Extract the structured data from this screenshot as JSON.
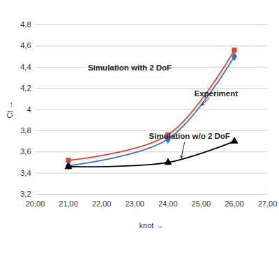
{
  "chart_data": {
    "type": "line",
    "x_label": "knot",
    "y_label": "Ct",
    "x": [
      21,
      24,
      26
    ],
    "xlim": [
      20,
      27
    ],
    "xticks": [
      {
        "value": 20,
        "label": "20,00"
      },
      {
        "value": 21,
        "label": "21,00"
      },
      {
        "value": 22,
        "label": "22,00"
      },
      {
        "value": 23,
        "label": "23,00"
      },
      {
        "value": 24,
        "label": "24,00"
      },
      {
        "value": 25,
        "label": "25,00"
      },
      {
        "value": 26,
        "label": "26,00"
      },
      {
        "value": 27,
        "label": "27,00"
      }
    ],
    "ylim": [
      3.2,
      4.8
    ],
    "yticks": [
      {
        "value": 3.2,
        "label": "3,2"
      },
      {
        "value": 3.4,
        "label": "3,4"
      },
      {
        "value": 3.6,
        "label": "3,6"
      },
      {
        "value": 3.8,
        "label": "3,8"
      },
      {
        "value": 4,
        "label": "4"
      },
      {
        "value": 4.2,
        "label": "4,2"
      },
      {
        "value": 4.4,
        "label": "4,4"
      },
      {
        "value": 4.6,
        "label": "4,6"
      },
      {
        "value": 4.8,
        "label": "4,8"
      }
    ],
    "grid": "y",
    "series": [
      {
        "name": "Simulation with 2 DoF",
        "color": "#d9443c",
        "marker": "square",
        "values": [
          3.52,
          3.76,
          4.56
        ]
      },
      {
        "name": "Experiment",
        "color": "#3f6fc2",
        "marker": "diamond",
        "values": [
          3.47,
          3.72,
          4.5
        ]
      },
      {
        "name": "Simulation w/o 2 DoF",
        "color": "#000000",
        "marker": "triangle",
        "values": [
          3.46,
          3.5,
          3.7
        ]
      }
    ]
  }
}
